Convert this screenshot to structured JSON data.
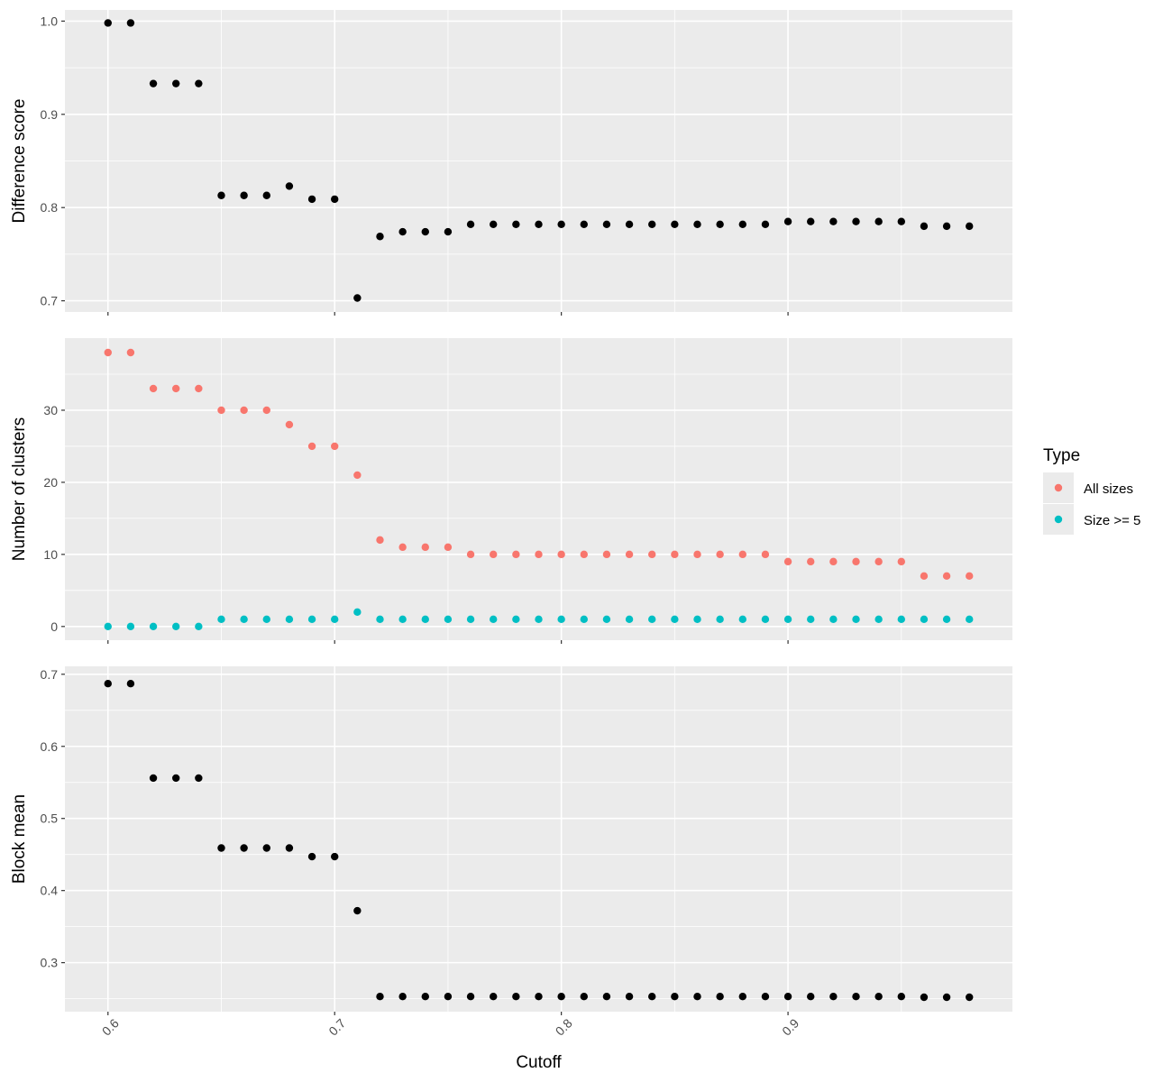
{
  "chart_data": {
    "type": "scatter",
    "xlabel": "Cutoff",
    "x_ticks": [
      0.6,
      0.7,
      0.8,
      0.9
    ],
    "x_tick_labels": [
      "0.6",
      "0.7",
      "0.8",
      "0.9"
    ],
    "xlim": [
      0.581,
      0.999
    ],
    "x": [
      0.6,
      0.61,
      0.62,
      0.63,
      0.64,
      0.65,
      0.66,
      0.67,
      0.68,
      0.69,
      0.7,
      0.71,
      0.72,
      0.73,
      0.74,
      0.75,
      0.76,
      0.77,
      0.78,
      0.79,
      0.8,
      0.81,
      0.82,
      0.83,
      0.84,
      0.85,
      0.86,
      0.87,
      0.88,
      0.89,
      0.9,
      0.91,
      0.92,
      0.93,
      0.94,
      0.95,
      0.96,
      0.97,
      0.98
    ],
    "grid": true,
    "legend": {
      "title": "Type",
      "position": "right",
      "entries": [
        {
          "label": "All sizes",
          "color": "#F8766D"
        },
        {
          "label": "Size >= 5",
          "color": "#00BFC4"
        }
      ]
    },
    "panels": [
      {
        "ylabel": "Difference score",
        "ylim": [
          0.688,
          1.012
        ],
        "y_ticks": [
          0.7,
          0.8,
          0.9,
          1.0
        ],
        "y_tick_labels": [
          "0.7",
          "0.8",
          "0.9",
          "1.0"
        ],
        "series": [
          {
            "color": "#000000",
            "values": [
              0.998,
              0.998,
              0.933,
              0.933,
              0.933,
              0.813,
              0.813,
              0.813,
              0.823,
              0.809,
              0.809,
              0.703,
              0.769,
              0.774,
              0.774,
              0.774,
              0.782,
              0.782,
              0.782,
              0.782,
              0.782,
              0.782,
              0.782,
              0.782,
              0.782,
              0.782,
              0.782,
              0.782,
              0.782,
              0.782,
              0.785,
              0.785,
              0.785,
              0.785,
              0.785,
              0.785,
              0.78,
              0.78,
              0.78
            ]
          }
        ]
      },
      {
        "ylabel": "Number of clusters",
        "ylim": [
          -1.9,
          40.0
        ],
        "y_ticks": [
          0,
          10,
          20,
          30
        ],
        "y_tick_labels": [
          "0",
          "10",
          "20",
          "30"
        ],
        "series": [
          {
            "name": "All sizes",
            "color": "#F8766D",
            "values": [
              38,
              38,
              33,
              33,
              33,
              30,
              30,
              30,
              28,
              25,
              25,
              21,
              12,
              11,
              11,
              11,
              10,
              10,
              10,
              10,
              10,
              10,
              10,
              10,
              10,
              10,
              10,
              10,
              10,
              10,
              9,
              9,
              9,
              9,
              9,
              9,
              7,
              7,
              7
            ]
          },
          {
            "name": "Size >= 5",
            "color": "#00BFC4",
            "values": [
              0,
              0,
              0,
              0,
              0,
              1,
              1,
              1,
              1,
              1,
              1,
              2,
              1,
              1,
              1,
              1,
              1,
              1,
              1,
              1,
              1,
              1,
              1,
              1,
              1,
              1,
              1,
              1,
              1,
              1,
              1,
              1,
              1,
              1,
              1,
              1,
              1,
              1,
              1
            ]
          }
        ]
      },
      {
        "ylabel": "Block mean",
        "ylim": [
          0.232,
          0.711
        ],
        "y_ticks": [
          0.3,
          0.4,
          0.5,
          0.6,
          0.7
        ],
        "y_tick_labels": [
          "0.3",
          "0.4",
          "0.5",
          "0.6",
          "0.7"
        ],
        "series": [
          {
            "color": "#000000",
            "values": [
              0.687,
              0.687,
              0.556,
              0.556,
              0.556,
              0.459,
              0.459,
              0.459,
              0.459,
              0.447,
              0.447,
              0.372,
              0.253,
              0.253,
              0.253,
              0.253,
              0.253,
              0.253,
              0.253,
              0.253,
              0.253,
              0.253,
              0.253,
              0.253,
              0.253,
              0.253,
              0.253,
              0.253,
              0.253,
              0.253,
              0.253,
              0.253,
              0.253,
              0.253,
              0.253,
              0.253,
              0.252,
              0.252,
              0.252
            ]
          }
        ]
      }
    ]
  }
}
